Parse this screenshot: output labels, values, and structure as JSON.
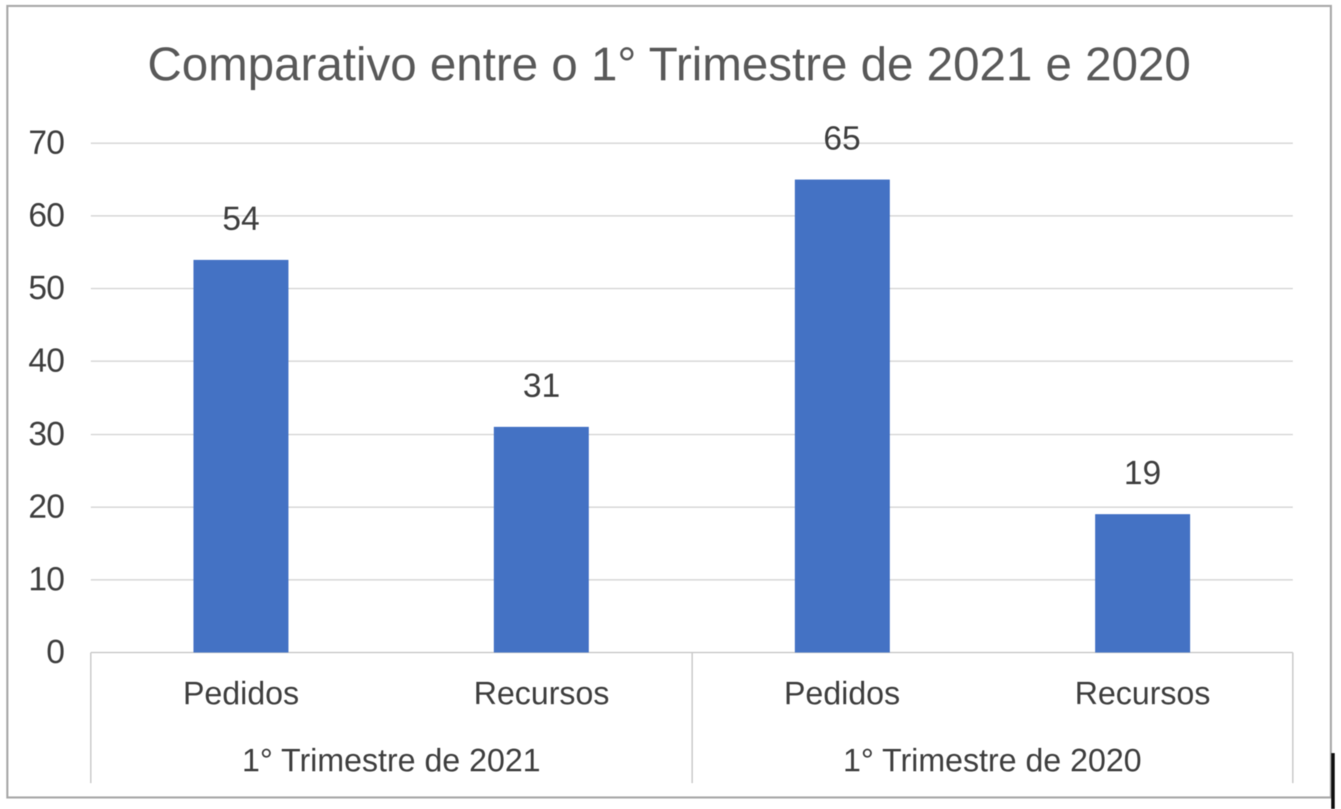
{
  "chart_data": {
    "type": "bar",
    "title": "Comparativo entre o 1° Trimestre de 2021 e 2020",
    "groups": [
      {
        "label": "1° Trimestre de 2021",
        "categories": [
          "Pedidos",
          "Recursos"
        ],
        "values": [
          54,
          31
        ]
      },
      {
        "label": "1° Trimestre de 2020",
        "categories": [
          "Pedidos",
          "Recursos"
        ],
        "values": [
          65,
          19
        ]
      }
    ],
    "y_axis": {
      "min": 0,
      "max": 70,
      "step": 10,
      "tick_labels": [
        "70",
        "60",
        "50",
        "40",
        "30",
        "20",
        "10",
        "0"
      ]
    },
    "data_labels": [
      54,
      31,
      65,
      19
    ],
    "bar_color": "#4472c4",
    "grid": true,
    "legend": "none"
  },
  "colors": {
    "bar": "#4472c4",
    "gridline": "#d6d6d6",
    "axis_line": "#c9c9c9",
    "title_text": "#595959",
    "label_text": "#3f3f3f",
    "frame_border": "#a9a9a9"
  }
}
